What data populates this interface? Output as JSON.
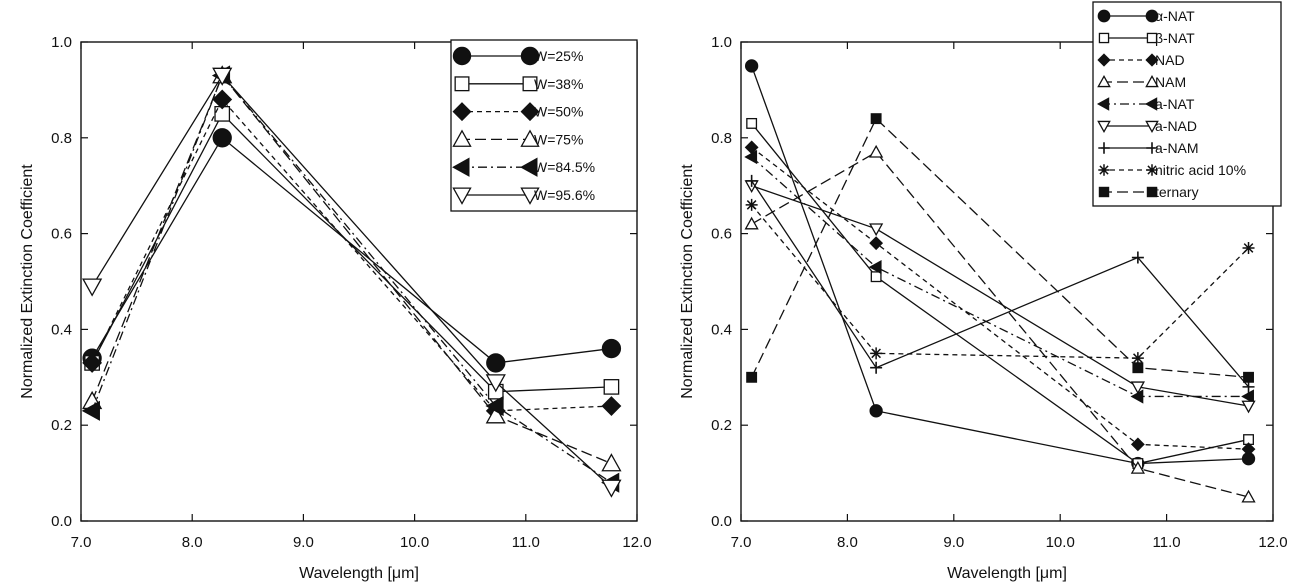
{
  "chart_data": [
    {
      "type": "line",
      "title": "",
      "xlabel": "Wavelength [μm]",
      "ylabel": "Normalized Extinction Coefficient",
      "xlim": [
        7.0,
        12.0
      ],
      "ylim": [
        0.0,
        1.0
      ],
      "xticks": [
        "7.0",
        "8.0",
        "9.0",
        "10.0",
        "11.0",
        "12.0"
      ],
      "yticks": [
        "0.0",
        "0.2",
        "0.4",
        "0.6",
        "0.8",
        "1.0"
      ],
      "grid": false,
      "legend_position": "top-right",
      "x": [
        7.1,
        8.27,
        10.73,
        11.77
      ],
      "series": [
        {
          "name": "W=25%",
          "marker": "circle",
          "fill": "filled",
          "dash": "solid",
          "values": [
            0.34,
            0.8,
            0.33,
            0.36
          ]
        },
        {
          "name": "W=38%",
          "marker": "square",
          "fill": "open",
          "dash": "solid",
          "values": [
            0.33,
            0.85,
            0.27,
            0.28
          ]
        },
        {
          "name": "W=50%",
          "marker": "diamond",
          "fill": "filled",
          "dash": "dashed",
          "values": [
            0.33,
            0.88,
            0.23,
            0.24
          ]
        },
        {
          "name": "W=75%",
          "marker": "triangle-up",
          "fill": "open",
          "dash": "longdash",
          "values": [
            0.25,
            0.93,
            0.22,
            0.12
          ]
        },
        {
          "name": "W=84.5%",
          "marker": "triangle-left",
          "fill": "filled",
          "dash": "dashdot",
          "values": [
            0.23,
            0.93,
            0.24,
            0.08
          ]
        },
        {
          "name": "W=95.6%",
          "marker": "triangle-down",
          "fill": "open",
          "dash": "solid",
          "values": [
            0.49,
            0.93,
            0.29,
            0.07
          ]
        }
      ]
    },
    {
      "type": "line",
      "title": "",
      "xlabel": "Wavelength [μm]",
      "ylabel": "Normalized Extinction Coefficient",
      "xlim": [
        7.0,
        12.0
      ],
      "ylim": [
        0.0,
        1.0
      ],
      "xticks": [
        "7.0",
        "8.0",
        "9.0",
        "10.0",
        "11.0",
        "12.0"
      ],
      "yticks": [
        "0.0",
        "0.2",
        "0.4",
        "0.6",
        "0.8",
        "1.0"
      ],
      "grid": false,
      "legend_position": "top-right",
      "x": [
        7.1,
        8.27,
        10.73,
        11.77
      ],
      "series": [
        {
          "name": "α-NAT",
          "marker": "circle",
          "fill": "filled",
          "dash": "solid",
          "values": [
            0.95,
            0.23,
            0.12,
            0.13
          ]
        },
        {
          "name": "β-NAT",
          "marker": "square",
          "fill": "open",
          "dash": "solid",
          "values": [
            0.83,
            0.51,
            0.12,
            0.17
          ]
        },
        {
          "name": "NAD",
          "marker": "diamond",
          "fill": "filled",
          "dash": "dashed",
          "values": [
            0.78,
            0.58,
            0.16,
            0.15
          ]
        },
        {
          "name": "NAM",
          "marker": "triangle-up",
          "fill": "open",
          "dash": "longdash",
          "values": [
            0.62,
            0.77,
            0.11,
            0.05
          ]
        },
        {
          "name": "a-NAT",
          "marker": "triangle-left",
          "fill": "filled",
          "dash": "dashdot",
          "values": [
            0.76,
            0.53,
            0.26,
            0.26
          ]
        },
        {
          "name": "a-NAD",
          "marker": "triangle-down",
          "fill": "open",
          "dash": "solid",
          "values": [
            0.7,
            0.61,
            0.28,
            0.24
          ]
        },
        {
          "name": "a-NAM",
          "marker": "plus",
          "fill": "open",
          "dash": "solid",
          "values": [
            0.71,
            0.32,
            0.55,
            0.28
          ]
        },
        {
          "name": "nitric acid 10%",
          "marker": "asterisk",
          "fill": "open",
          "dash": "dashed",
          "values": [
            0.66,
            0.35,
            0.34,
            0.57
          ]
        },
        {
          "name": "ternary",
          "marker": "square",
          "fill": "filled",
          "dash": "longdash",
          "values": [
            0.3,
            0.84,
            0.32,
            0.3
          ]
        }
      ]
    }
  ]
}
